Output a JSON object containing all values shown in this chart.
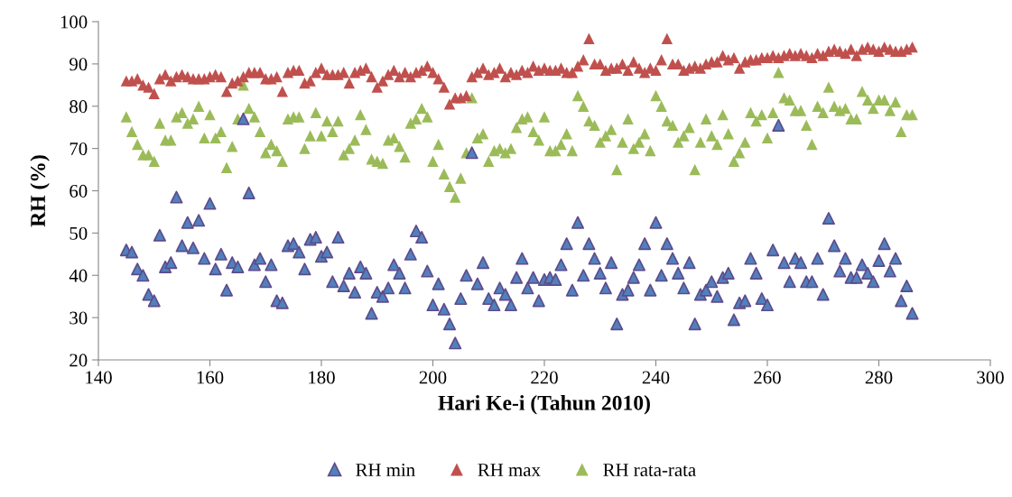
{
  "chart_data": {
    "type": "scatter",
    "xlabel": "Hari Ke-i (Tahun 2010)",
    "ylabel": "RH (%)",
    "marker": "triangle",
    "legend": "bottom",
    "grid": false,
    "xlim": [
      140,
      300
    ],
    "xticks": [
      140,
      160,
      180,
      200,
      220,
      240,
      260,
      280,
      300
    ],
    "ylim": [
      20,
      100
    ],
    "yticks": [
      20,
      30,
      40,
      50,
      60,
      70,
      80,
      90,
      100
    ],
    "x": [
      145,
      146,
      147,
      148,
      149,
      150,
      151,
      152,
      153,
      154,
      155,
      156,
      157,
      158,
      159,
      160,
      161,
      162,
      163,
      164,
      165,
      166,
      167,
      168,
      169,
      170,
      171,
      172,
      173,
      174,
      175,
      176,
      177,
      178,
      179,
      180,
      181,
      182,
      183,
      184,
      185,
      186,
      187,
      188,
      189,
      190,
      191,
      192,
      193,
      194,
      195,
      196,
      197,
      198,
      199,
      200,
      201,
      202,
      203,
      204,
      205,
      206,
      207,
      208,
      209,
      210,
      211,
      212,
      213,
      214,
      215,
      216,
      217,
      218,
      219,
      220,
      221,
      222,
      223,
      224,
      225,
      226,
      227,
      228,
      229,
      230,
      231,
      232,
      233,
      234,
      235,
      236,
      237,
      238,
      239,
      240,
      241,
      242,
      243,
      244,
      245,
      246,
      247,
      248,
      249,
      250,
      251,
      252,
      253,
      254,
      255,
      256,
      257,
      258,
      259,
      260,
      261,
      262,
      263,
      264,
      265,
      266,
      267,
      268,
      269,
      270,
      271,
      272,
      273,
      274,
      275,
      276,
      277,
      278,
      279,
      280,
      281,
      282,
      283,
      284,
      285,
      286
    ],
    "series": [
      {
        "name": "RH min",
        "color": "#4f81bd",
        "values": [
          46,
          45.5,
          41.5,
          40,
          35.5,
          34,
          49.5,
          42,
          43,
          58.5,
          47,
          52.5,
          46.5,
          53,
          44,
          57,
          41.5,
          45,
          36.5,
          43,
          42,
          77,
          59.5,
          42.5,
          44,
          38.5,
          42.5,
          34,
          33.5,
          47,
          47.5,
          45.5,
          41.5,
          48.5,
          49,
          44.5,
          45.5,
          38.5,
          49,
          37.5,
          40.5,
          36,
          42,
          40.5,
          31,
          36,
          35,
          37,
          42.5,
          40.5,
          37,
          45,
          50.5,
          49,
          41,
          33,
          38,
          32,
          28.5,
          24,
          34.5,
          40,
          69,
          38,
          43,
          34.5,
          33,
          37,
          35.5,
          33,
          39.5,
          44,
          37,
          39.5,
          34,
          39,
          39.5,
          39,
          42.5,
          47.5,
          36.5,
          52.5,
          40,
          47.5,
          44,
          40.5,
          37,
          43,
          28.5,
          35.5,
          36.5,
          39.5,
          42.5,
          47.5,
          36.5,
          52.5,
          40,
          47.5,
          44,
          40.5,
          37,
          43,
          28.5,
          35.5,
          36.5,
          38.5,
          35,
          39.5,
          40.5,
          29.5,
          33.5,
          34,
          44,
          40.5,
          34.5,
          33,
          46,
          75.5,
          43,
          38.5,
          44,
          43,
          38.5,
          38.5,
          44,
          35.5,
          53.5,
          47,
          41,
          44,
          39.5,
          39.5,
          42.5,
          40.5,
          38.5,
          43.5,
          47.5,
          41,
          44,
          34,
          37.5,
          31
        ]
      },
      {
        "name": "RH max",
        "color": "#c0504d",
        "values": [
          86,
          86,
          86.5,
          85,
          84.5,
          83,
          86.5,
          87.5,
          86,
          87,
          87.5,
          87,
          86.5,
          86.5,
          86.5,
          87,
          87.5,
          87,
          83.5,
          85.5,
          86,
          87,
          88,
          88,
          88,
          86.5,
          86.5,
          87,
          83.5,
          88,
          88.5,
          88.5,
          85.5,
          86,
          88,
          89,
          87.5,
          87.5,
          87.5,
          88,
          85.5,
          88,
          88.5,
          89,
          87,
          84.5,
          86,
          87.5,
          88.5,
          87,
          88,
          87,
          88,
          88.5,
          89.5,
          88,
          86.5,
          84.5,
          80.5,
          82,
          82,
          82.5,
          87,
          88,
          89,
          87.5,
          88,
          89,
          87,
          88,
          87.5,
          88.5,
          88,
          89.5,
          88.5,
          89,
          88.5,
          88.5,
          89,
          88,
          88,
          89.5,
          91,
          96,
          90,
          90,
          88.5,
          89,
          89,
          90,
          88.5,
          90.5,
          89,
          88,
          89,
          88.5,
          91,
          96,
          90,
          90,
          88.5,
          89,
          89.5,
          89,
          90,
          90.5,
          90.5,
          92,
          91,
          91.5,
          89,
          90.5,
          91,
          91,
          91.5,
          91.5,
          92,
          91.5,
          92,
          92.5,
          92,
          92.5,
          92,
          91.5,
          92.5,
          92,
          93,
          93.5,
          93,
          92.5,
          93.5,
          92,
          93.5,
          94,
          93.5,
          93,
          94,
          93.5,
          93,
          93,
          93.5,
          94
        ]
      },
      {
        "name": "RH rata-rata",
        "color": "#9bbb59",
        "values": [
          77.5,
          74,
          71,
          68.5,
          68.5,
          67,
          76,
          72,
          72,
          77.5,
          78.5,
          76,
          77,
          80,
          72.5,
          78,
          72.5,
          74,
          65.5,
          70.5,
          77,
          85,
          79.5,
          77.5,
          74,
          69,
          71,
          69.5,
          67,
          77,
          77.5,
          77.5,
          70,
          73,
          78.5,
          73,
          76.5,
          74,
          76.5,
          68.5,
          70,
          72,
          78,
          74.5,
          67.5,
          67,
          66.5,
          72,
          72.5,
          70.5,
          68,
          76,
          77,
          79.5,
          77.5,
          67,
          71,
          64,
          61,
          58.5,
          63,
          69,
          82,
          72.5,
          73.5,
          67,
          69.5,
          70,
          69,
          70,
          75,
          77,
          77.5,
          74,
          72,
          77.5,
          69.5,
          69.5,
          71,
          73.5,
          69.5,
          82.5,
          80,
          76.5,
          75.5,
          71.5,
          73,
          74.5,
          65,
          71.5,
          77,
          70,
          71.5,
          73.5,
          69.5,
          82.5,
          80,
          76.5,
          75.5,
          71.5,
          73,
          75,
          65,
          71.5,
          77,
          73,
          71,
          78,
          73.5,
          67,
          69,
          71.5,
          78.5,
          76.5,
          78,
          72.5,
          78.5,
          88,
          82,
          81.5,
          79,
          79,
          75.5,
          71,
          80,
          78.5,
          84.5,
          80,
          79,
          79.5,
          77,
          77,
          83.5,
          81.5,
          79.5,
          81.5,
          81.5,
          79,
          81,
          74,
          78,
          78
        ]
      }
    ]
  }
}
